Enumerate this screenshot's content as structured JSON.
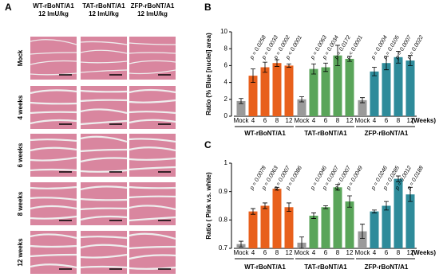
{
  "panel_a": {
    "label": "A",
    "columns": [
      [
        "WT-rBoNT/A1",
        "12 lmU/kg"
      ],
      [
        "TAT-rBoNT/A1",
        "12 lmU/kg"
      ],
      [
        "ZFP-rBoNT/A1",
        "12 lmU/kg"
      ]
    ],
    "rows": [
      "Mock",
      "4 weeks",
      "6 weeks",
      "8 weeks",
      "12 weeks"
    ]
  },
  "chart_data": [
    {
      "type": "bar",
      "panel": "B",
      "ylabel": "Ratio (% Blue [nuclei] area)",
      "categories": [
        "Mock",
        "4",
        "6",
        "8",
        "12"
      ],
      "x_unit": "(Weeks)",
      "ylim": [
        0,
        10
      ],
      "yticks": [
        0,
        2,
        4,
        6,
        8,
        10
      ],
      "mock_color": "#9a9a9a",
      "groups": [
        {
          "name": "WT-rBoNT/A1",
          "color": "#e8601c",
          "values": [
            1.8,
            4.8,
            5.8,
            6.3,
            6.0
          ],
          "errors": [
            0.3,
            0.8,
            0.6,
            0.4,
            0.2
          ],
          "p_values": [
            "p = 0.0258",
            "p = 0.0033",
            "p = 0.0002",
            "p < 0.0001"
          ]
        },
        {
          "name": "TAT-rBoNT/A1",
          "color": "#5aa55a",
          "values": [
            2.0,
            5.6,
            5.8,
            7.2,
            6.8
          ],
          "errors": [
            0.3,
            0.6,
            0.5,
            1.2,
            0.3
          ],
          "p_values": [
            "p = 0.0063",
            "p = 0.0034",
            "p = 0.0172",
            "p < 0.0001"
          ]
        },
        {
          "name": "ZFP-rBoNT/A1",
          "color": "#2e8b9a",
          "values": [
            1.9,
            5.3,
            6.3,
            7.0,
            6.6
          ],
          "errors": [
            0.3,
            0.5,
            0.8,
            0.7,
            0.6
          ],
          "p_values": [
            "p = 0.0004",
            "p = 0.0105",
            "p = 0.0007",
            "p = 0.0022"
          ]
        }
      ]
    },
    {
      "type": "bar",
      "panel": "C",
      "ylabel": "Ratio ( Pink v.s. white)",
      "categories": [
        "Mock",
        "4",
        "6",
        "8",
        "12"
      ],
      "x_unit": "(Weeks)",
      "ylim": [
        0.7,
        1.0
      ],
      "yticks": [
        0.7,
        0.8,
        0.9,
        1
      ],
      "mock_color": "#9a9a9a",
      "groups": [
        {
          "name": "WT-rBoNT/A1",
          "color": "#e8601c",
          "values": [
            0.715,
            0.83,
            0.85,
            0.91,
            0.845
          ],
          "errors": [
            0.01,
            0.01,
            0.01,
            0.005,
            0.015
          ],
          "p_values": [
            "p = 0.0078",
            "p = 0.0063",
            "p = 0.0007",
            "p = 0.0086"
          ]
        },
        {
          "name": "TAT-rBoNT/A1",
          "color": "#5aa55a",
          "values": [
            0.72,
            0.815,
            0.845,
            0.915,
            0.865
          ],
          "errors": [
            0.02,
            0.01,
            0.005,
            0.01,
            0.02
          ],
          "p_values": [
            "p = 0.0046",
            "p = 0.0007",
            "p = 0.0007",
            "p = 0.0049"
          ]
        },
        {
          "name": "ZFP-rBoNT/A1",
          "color": "#2e8b9a",
          "values": [
            0.76,
            0.83,
            0.85,
            0.945,
            0.89
          ],
          "errors": [
            0.025,
            0.005,
            0.015,
            0.01,
            0.025
          ],
          "p_values": [
            "p = 0.0246",
            "p = 0.0285",
            "p = 0.0012",
            "p = 0.0188"
          ]
        }
      ]
    }
  ]
}
